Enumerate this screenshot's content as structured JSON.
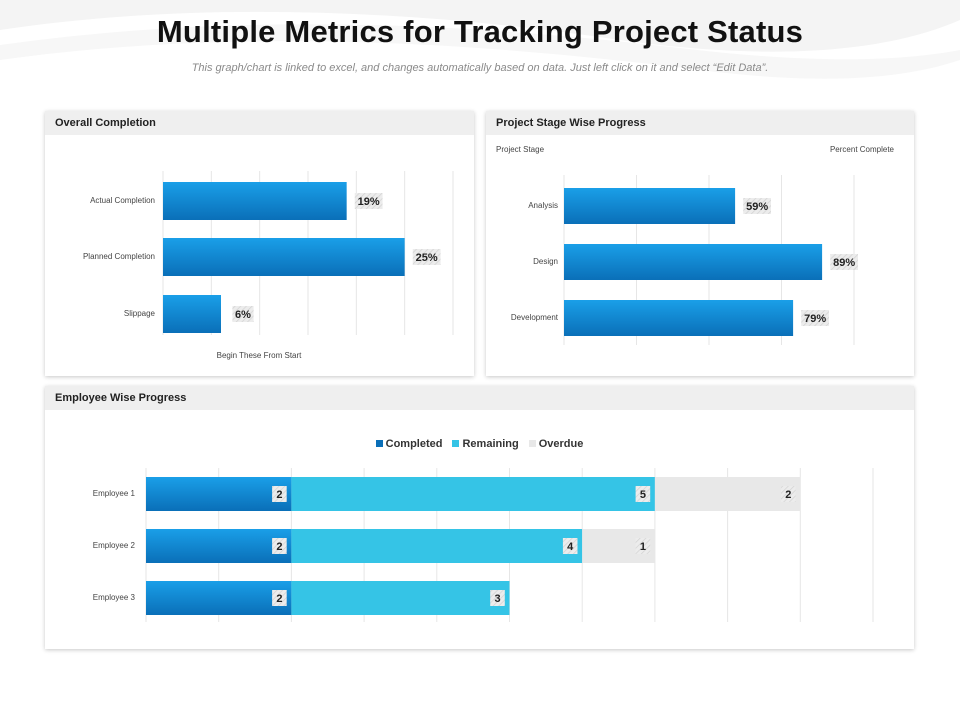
{
  "page": {
    "title": "Multiple Metrics for Tracking Project Status",
    "subtitle": "This graph/chart is linked to excel, and changes automatically based on data. Just left click on it and select “Edit Data”."
  },
  "colors": {
    "bar_top": "#1a9fe8",
    "bar_bottom": "#0a6fb8",
    "remaining": "#35c4e6",
    "overdue": "#e8e8e8",
    "grid": "#e6e6e6",
    "header_bg": "#efefef"
  },
  "chart_data": [
    {
      "type": "bar",
      "orientation": "horizontal",
      "title": "Overall Completion",
      "categories": [
        "Actual Completion",
        "Planned Completion",
        "Slippage"
      ],
      "values": [
        19,
        25,
        6
      ],
      "value_labels": [
        "19%",
        "25%",
        "6%"
      ],
      "xlabel": "Begin These From Start",
      "xlim": [
        0,
        30
      ],
      "grid": true
    },
    {
      "type": "bar",
      "orientation": "horizontal",
      "title": "Project Stage Wise Progress",
      "categories": [
        "Analysis",
        "Design",
        "Development"
      ],
      "values": [
        59,
        89,
        79
      ],
      "value_labels": [
        "59%",
        "89%",
        "79%"
      ],
      "category_header": "Project Stage",
      "value_header": "Percent Complete",
      "xlim": [
        0,
        100
      ],
      "grid": true
    },
    {
      "type": "bar",
      "orientation": "horizontal",
      "stacked": true,
      "title": "Employee Wise Progress",
      "categories": [
        "Employee 1",
        "Employee 2",
        "Employee 3"
      ],
      "series": [
        {
          "name": "Completed",
          "values": [
            2,
            2,
            2
          ]
        },
        {
          "name": "Remaining",
          "values": [
            5,
            4,
            3
          ]
        },
        {
          "name": "Overdue",
          "values": [
            2,
            1,
            0
          ]
        }
      ],
      "xlim": [
        0,
        10
      ],
      "legend": "top-center",
      "grid": true
    }
  ]
}
